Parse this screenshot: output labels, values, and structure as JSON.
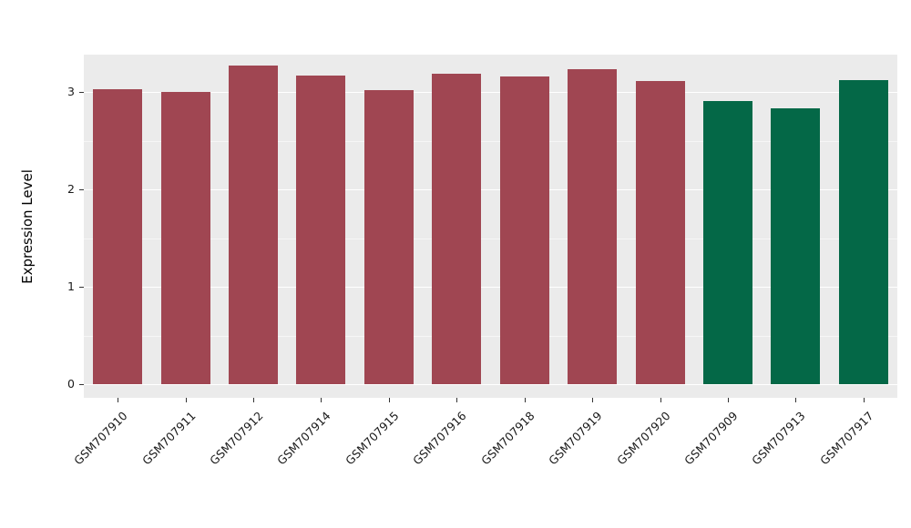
{
  "chart_data": {
    "type": "bar",
    "title": "",
    "xlabel": "",
    "ylabel": "Expression Level",
    "categories": [
      "GSM707910",
      "GSM707911",
      "GSM707912",
      "GSM707914",
      "GSM707915",
      "GSM707916",
      "GSM707918",
      "GSM707919",
      "GSM707920",
      "GSM707909",
      "GSM707913",
      "GSM707917"
    ],
    "values": [
      3.03,
      3.0,
      3.27,
      3.17,
      3.02,
      3.19,
      3.16,
      3.23,
      3.11,
      2.91,
      2.83,
      3.12
    ],
    "groups": [
      "red",
      "red",
      "red",
      "red",
      "red",
      "red",
      "red",
      "red",
      "red",
      "green",
      "green",
      "green"
    ],
    "group_colors": {
      "red": "#A04652",
      "green": "#046847"
    },
    "ylim": [
      0,
      3.45
    ],
    "yticks": [
      0,
      1,
      2,
      3
    ],
    "minor_ticks": [
      0.5,
      1.5,
      2.5
    ],
    "grid": "on",
    "legend": "none",
    "panel_bg": "#EBEBEB",
    "grid_color": "#FFFFFF"
  }
}
